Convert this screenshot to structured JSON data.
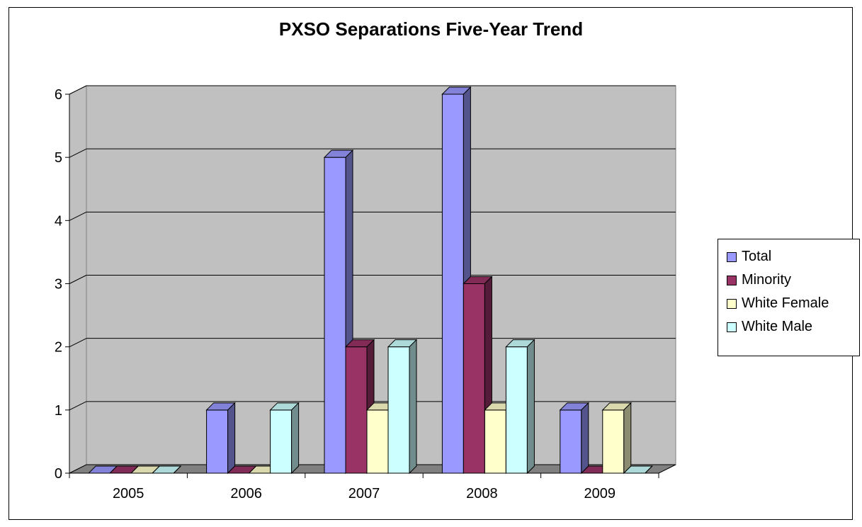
{
  "chart_data": {
    "type": "bar",
    "title": "PXSO Separations Five-Year Trend",
    "categories": [
      "2005",
      "2006",
      "2007",
      "2008",
      "2009"
    ],
    "series": [
      {
        "name": "Total",
        "values": [
          0,
          1,
          5,
          6,
          1
        ],
        "color": "#9999ff"
      },
      {
        "name": "Minority",
        "values": [
          0,
          0,
          2,
          3,
          0
        ],
        "color": "#993366"
      },
      {
        "name": "White Female",
        "values": [
          0,
          0,
          1,
          1,
          1
        ],
        "color": "#ffffcc"
      },
      {
        "name": "White Male",
        "values": [
          0,
          1,
          2,
          2,
          0
        ],
        "color": "#ccffff"
      }
    ],
    "y_ticks": [
      "0",
      "1",
      "2",
      "3",
      "4",
      "5",
      "6"
    ],
    "ylim": [
      0,
      6
    ],
    "xlabel": "",
    "ylabel": "",
    "grid": true,
    "legend_position": "right",
    "wall_color": "#c0c0c0",
    "floor_color": "#808080"
  }
}
